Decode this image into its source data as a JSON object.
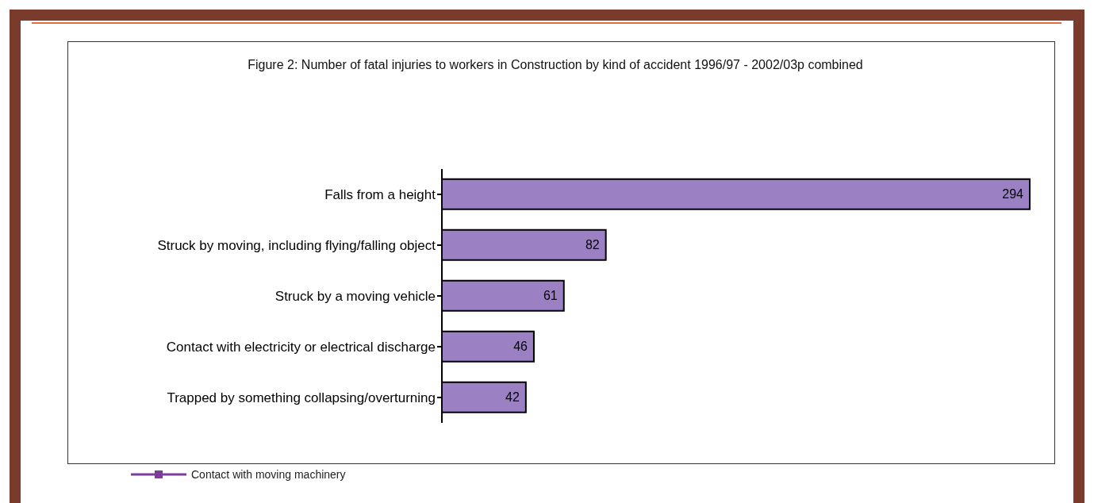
{
  "chart_data": {
    "type": "bar",
    "orientation": "horizontal",
    "title": "Figure 2: Number of fatal injuries to workers in Construction by kind of accident 1996/97 - 2002/03p combined",
    "categories": [
      "Falls from a height",
      "Struck by moving, including flying/falling object",
      "Struck by a moving vehicle",
      "Contact with electricity or electrical discharge",
      "Trapped by something collapsing/overturning"
    ],
    "values": [
      294,
      82,
      61,
      46,
      42
    ],
    "color": "#9b80c4",
    "data_labels": true,
    "annotations": [
      "Contact with moving machinery"
    ]
  }
}
